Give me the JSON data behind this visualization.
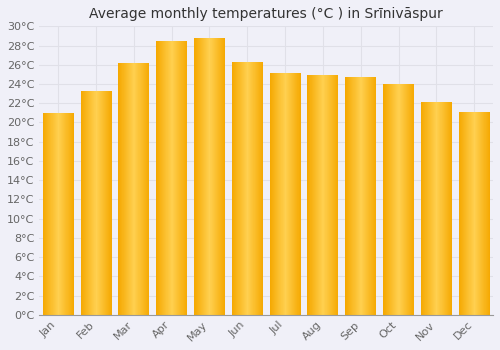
{
  "title": "Average monthly temperatures (°C ) in Srīnivāspur",
  "months": [
    "Jan",
    "Feb",
    "Mar",
    "Apr",
    "May",
    "Jun",
    "Jul",
    "Aug",
    "Sep",
    "Oct",
    "Nov",
    "Dec"
  ],
  "values": [
    21.0,
    23.3,
    26.2,
    28.5,
    28.8,
    26.3,
    25.1,
    24.9,
    24.7,
    24.0,
    22.1,
    21.1
  ],
  "ylim": [
    0,
    30
  ],
  "yticks": [
    0,
    2,
    4,
    6,
    8,
    10,
    12,
    14,
    16,
    18,
    20,
    22,
    24,
    26,
    28,
    30
  ],
  "bar_color_center": "#FFD050",
  "bar_color_edge": "#F5A800",
  "background_color": "#f0f0f8",
  "plot_bg_color": "#f0f0f8",
  "grid_color": "#e0e0e8",
  "title_fontsize": 10,
  "tick_fontsize": 8
}
